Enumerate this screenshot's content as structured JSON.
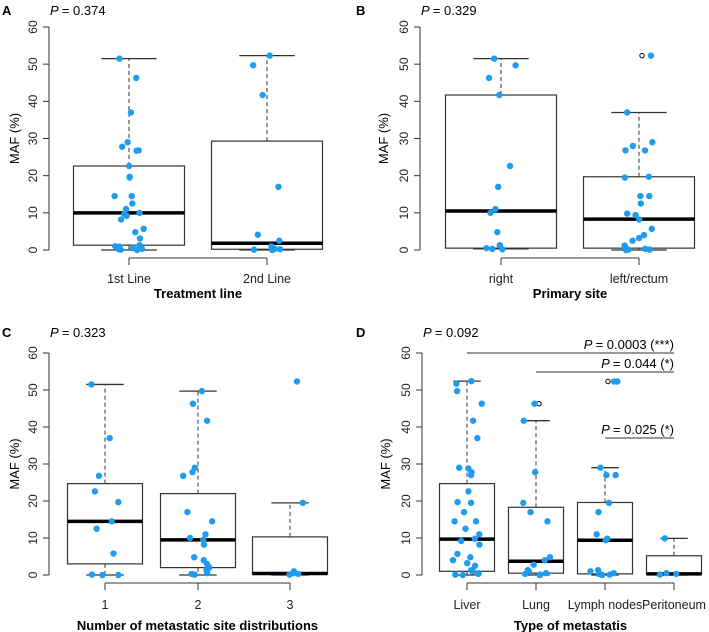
{
  "colors": {
    "point": "#1f9bf0",
    "box": "#333333",
    "median": "#000000"
  },
  "chart_data": [
    {
      "type": "box",
      "panel": "A",
      "p_value": "= 0.374",
      "xlabel": "Treatment line",
      "ylabel": "MAF (%)",
      "ylim": [
        0,
        60
      ],
      "yticks": [
        0,
        10,
        20,
        30,
        40,
        50,
        60
      ],
      "categories": [
        "1st Line",
        "2nd Line"
      ],
      "boxes": [
        {
          "q1": 1.3,
          "median": 10,
          "q3": 22.6,
          "whisker_low": 0,
          "whisker_high": 51.5,
          "outliers": []
        },
        {
          "q1": 0.2,
          "median": 1.8,
          "q3": 29.3,
          "whisker_low": 0,
          "whisker_high": 52.3,
          "outliers": []
        }
      ],
      "points": [
        [
          51.5,
          46.3,
          37,
          29,
          27.8,
          26.8,
          26.7,
          22.6,
          19.7,
          19.5,
          14.5,
          14.5,
          12.5,
          11,
          10,
          9.7,
          9.2,
          8.2,
          5.7,
          4.8,
          3.1,
          1.3,
          1,
          0.5,
          0.3,
          0.1,
          0,
          0.2,
          0.5,
          0.9
        ],
        [
          52.3,
          49.7,
          41.7,
          17,
          4.1,
          2.5,
          1,
          0.3,
          0.1,
          0,
          0.2
        ]
      ],
      "brackets": []
    },
    {
      "type": "box",
      "panel": "B",
      "p_value": "= 0.329",
      "xlabel": "Primary site",
      "ylabel": "MAF (%)",
      "ylim": [
        0,
        60
      ],
      "yticks": [
        0,
        10,
        20,
        30,
        40,
        50,
        60
      ],
      "categories": [
        "right",
        "left/rectum"
      ],
      "boxes": [
        {
          "q1": 0.5,
          "median": 10.5,
          "q3": 41.7,
          "whisker_low": 0.3,
          "whisker_high": 51.5,
          "outliers": []
        },
        {
          "q1": 0.5,
          "median": 8.3,
          "q3": 19.7,
          "whisker_low": 0,
          "whisker_high": 37,
          "outliers": [
            52.3
          ]
        }
      ],
      "points": [
        [
          51.5,
          49.7,
          46.3,
          41.7,
          22.6,
          17,
          11,
          10,
          4.8,
          1.3,
          0.5,
          0.3,
          0.2
        ],
        [
          52.3,
          37,
          29,
          28,
          26.8,
          26.8,
          19.7,
          19.5,
          14.5,
          14.5,
          12.5,
          9.8,
          9.4,
          8.2,
          5.7,
          4,
          3.2,
          2.5,
          1.2,
          0.8,
          0.3,
          0.1,
          0,
          0.1
        ]
      ],
      "brackets": []
    },
    {
      "type": "box",
      "panel": "C",
      "p_value": "= 0.323",
      "xlabel": "Number of metastatic site distributions",
      "ylabel": "MAF (%)",
      "ylim": [
        0,
        60
      ],
      "yticks": [
        0,
        10,
        20,
        30,
        40,
        50,
        60
      ],
      "categories": [
        "1",
        "2",
        "3"
      ],
      "boxes": [
        {
          "q1": 3,
          "median": 14.5,
          "q3": 24.7,
          "whisker_low": 0,
          "whisker_high": 51.5,
          "outliers": []
        },
        {
          "q1": 2,
          "median": 9.5,
          "q3": 22,
          "whisker_low": 0,
          "whisker_high": 49.7,
          "outliers": []
        },
        {
          "q1": 0.2,
          "median": 0.4,
          "q3": 10.3,
          "whisker_low": 0,
          "whisker_high": 19.5,
          "outliers": []
        }
      ],
      "points": [
        [
          51.5,
          37,
          26.8,
          22.6,
          19.7,
          14.5,
          12.5,
          5.8,
          0,
          0.1,
          0
        ],
        [
          49.7,
          46.3,
          41.7,
          29,
          27.8,
          26.8,
          17,
          14.5,
          11,
          10,
          9.5,
          8.2,
          4.8,
          4,
          3,
          2,
          1.3,
          0.5,
          0.3,
          0.1
        ],
        [
          52.3,
          19.5,
          1,
          0.5,
          0.3,
          0.1
        ]
      ],
      "brackets": []
    },
    {
      "type": "box",
      "panel": "D",
      "p_value": "= 0.092",
      "xlabel": "Type of metastatis",
      "ylabel": "MAF (%)",
      "ylim": [
        0,
        60
      ],
      "yticks": [
        0,
        10,
        20,
        30,
        40,
        50,
        60
      ],
      "categories": [
        "Liver",
        "Lung",
        "Lymph nodes",
        "Peritoneum"
      ],
      "boxes": [
        {
          "q1": 1,
          "median": 9.7,
          "q3": 24.7,
          "whisker_low": 0,
          "whisker_high": 52.4,
          "outliers": []
        },
        {
          "q1": 0.5,
          "median": 3.7,
          "q3": 18.3,
          "whisker_low": 0,
          "whisker_high": 41.7,
          "outliers": [
            46.3
          ]
        },
        {
          "q1": 0.3,
          "median": 9.4,
          "q3": 19.6,
          "whisker_low": 0,
          "whisker_high": 29,
          "outliers": [
            52.3
          ]
        },
        {
          "q1": 0.2,
          "median": 0.3,
          "q3": 5.2,
          "whisker_low": 0,
          "whisker_high": 9.9,
          "outliers": []
        }
      ],
      "points": [
        [
          52.4,
          51.7,
          49.7,
          46.3,
          41.7,
          37,
          29,
          28.8,
          27.8,
          27,
          22.6,
          19.7,
          19.5,
          17,
          14.5,
          14.5,
          12.5,
          11,
          9.8,
          9.2,
          8.2,
          5.7,
          4.8,
          4,
          3.2,
          2.5,
          1.3,
          1,
          0.5,
          0.3,
          0.1,
          0
        ],
        [
          46.3,
          41.7,
          27.8,
          19.5,
          17,
          14.5,
          4.8,
          4,
          2.8,
          1.3,
          1,
          0.5,
          0.3,
          0.1,
          0
        ],
        [
          52.3,
          52.3,
          29,
          27,
          27,
          19.5,
          17,
          11,
          9.8,
          9.4,
          1.3,
          1,
          0.5,
          0.3,
          0.1,
          0
        ],
        [
          9.9,
          0.5,
          0.3,
          0.1
        ]
      ],
      "brackets": [
        {
          "from": 0,
          "to": 3,
          "p_value": "= 0.0003 (***)"
        },
        {
          "from": 1,
          "to": 3,
          "p_value": "= 0.044 (*)"
        },
        {
          "from": 2,
          "to": 3,
          "p_value": "= 0.025 (*)"
        }
      ]
    }
  ]
}
